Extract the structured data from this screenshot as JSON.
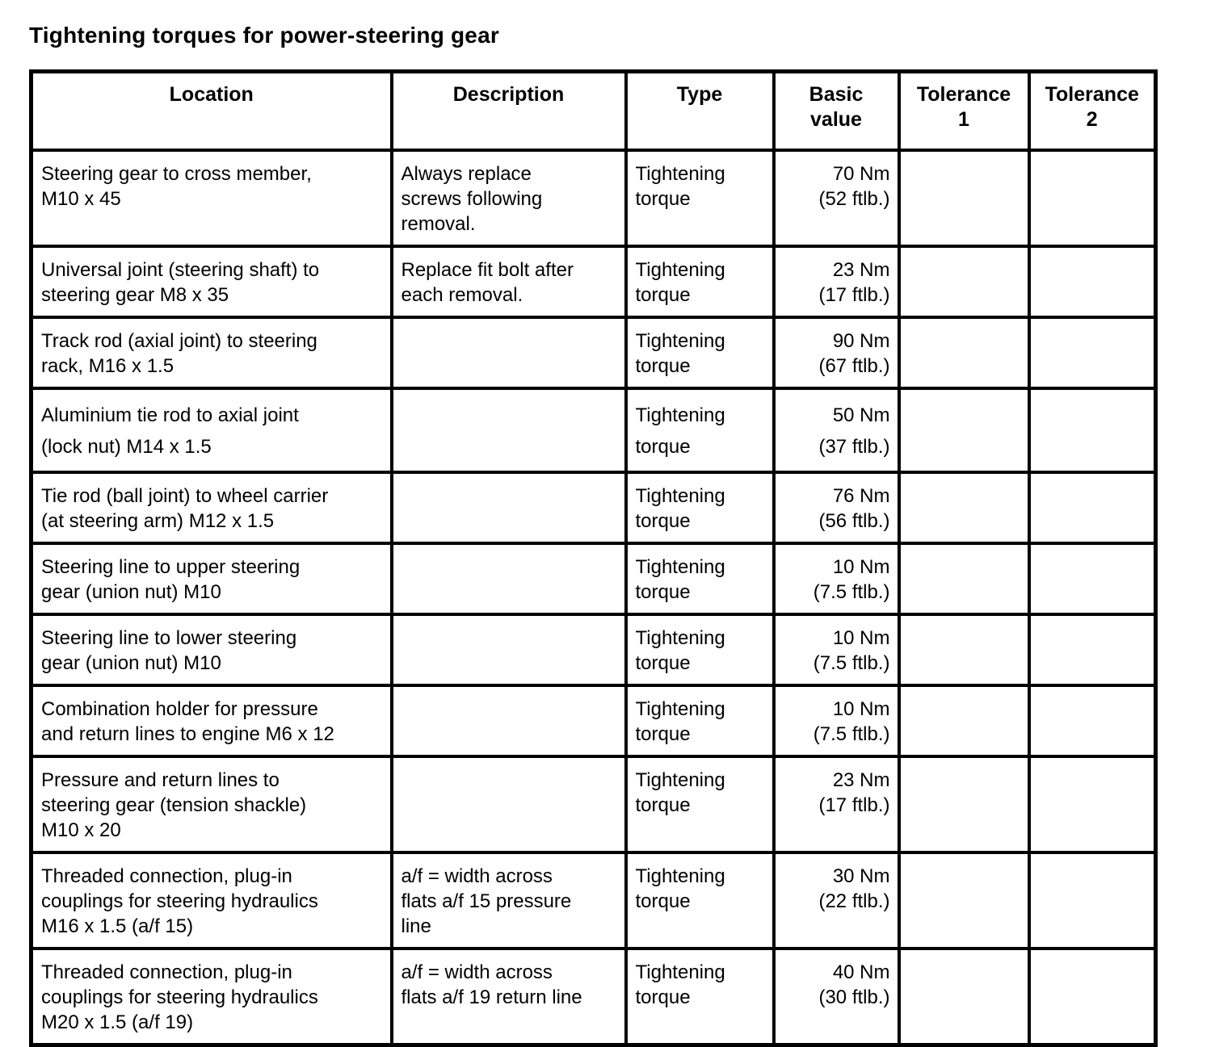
{
  "page": {
    "title": "Tightening torques for power-steering gear"
  },
  "table": {
    "columns": [
      "Location",
      "Description",
      "Type",
      "Basic\nvalue",
      "Tolerance\n1",
      "Tolerance\n2"
    ],
    "rows": [
      {
        "location": "Steering gear to cross member,\nM10 x 45",
        "description": "Always replace\nscrews following\nremoval.",
        "type": "Tightening\ntorque",
        "basic_value": "70 Nm\n(52 ftlb.)",
        "tolerance_1": "",
        "tolerance_2": ""
      },
      {
        "location": "Universal joint (steering shaft) to\nsteering gear M8 x 35",
        "description": "Replace fit bolt after\neach removal.",
        "type": "Tightening\ntorque",
        "basic_value": "23 Nm\n(17 ftlb.)",
        "tolerance_1": "",
        "tolerance_2": ""
      },
      {
        "location": "Track rod (axial joint) to steering\nrack, M16 x 1.5",
        "description": "",
        "type": "Tightening\ntorque",
        "basic_value": "90 Nm\n(67 ftlb.)",
        "tolerance_1": "",
        "tolerance_2": ""
      },
      {
        "location": "Aluminium tie rod to axial joint\n(lock nut) M14 x 1.5",
        "description": "",
        "type": "Tightening\ntorque",
        "basic_value": "50 Nm\n(37 ftlb.)",
        "tolerance_1": "",
        "tolerance_2": "",
        "spaced": true
      },
      {
        "location": "Tie rod (ball joint) to wheel carrier\n(at steering arm) M12 x 1.5",
        "description": "",
        "type": "Tightening\ntorque",
        "basic_value": "76 Nm\n(56 ftlb.)",
        "tolerance_1": "",
        "tolerance_2": ""
      },
      {
        "location": "Steering line to upper steering\ngear (union nut) M10",
        "description": "",
        "type": "Tightening\ntorque",
        "basic_value": "10 Nm\n(7.5 ftlb.)",
        "tolerance_1": "",
        "tolerance_2": ""
      },
      {
        "location": "Steering line to lower steering\ngear (union nut) M10",
        "description": "",
        "type": "Tightening\ntorque",
        "basic_value": "10 Nm\n(7.5 ftlb.)",
        "tolerance_1": "",
        "tolerance_2": ""
      },
      {
        "location": "Combination holder for pressure\nand return lines to engine M6 x 12",
        "description": "",
        "type": "Tightening\ntorque",
        "basic_value": "10 Nm\n(7.5 ftlb.)",
        "tolerance_1": "",
        "tolerance_2": ""
      },
      {
        "location": "Pressure and return lines to\nsteering gear (tension shackle)\nM10 x 20",
        "description": "",
        "type": "Tightening\ntorque",
        "basic_value": "23 Nm\n(17 ftlb.)",
        "tolerance_1": "",
        "tolerance_2": ""
      },
      {
        "location": "Threaded connection, plug-in\ncouplings for steering hydraulics\nM16 x 1.5 (a/f 15)",
        "description": "a/f = width across\nflats a/f 15 pressure\nline",
        "type": "Tightening\ntorque",
        "basic_value": "30 Nm\n(22 ftlb.)",
        "tolerance_1": "",
        "tolerance_2": ""
      },
      {
        "location": "Threaded connection, plug-in\ncouplings for steering hydraulics\nM20 x 1.5 (a/f 19)",
        "description": "a/f = width across\nflats a/f 19 return line",
        "type": "Tightening\ntorque",
        "basic_value": "40 Nm\n(30 ftlb.)",
        "tolerance_1": "",
        "tolerance_2": ""
      }
    ]
  }
}
